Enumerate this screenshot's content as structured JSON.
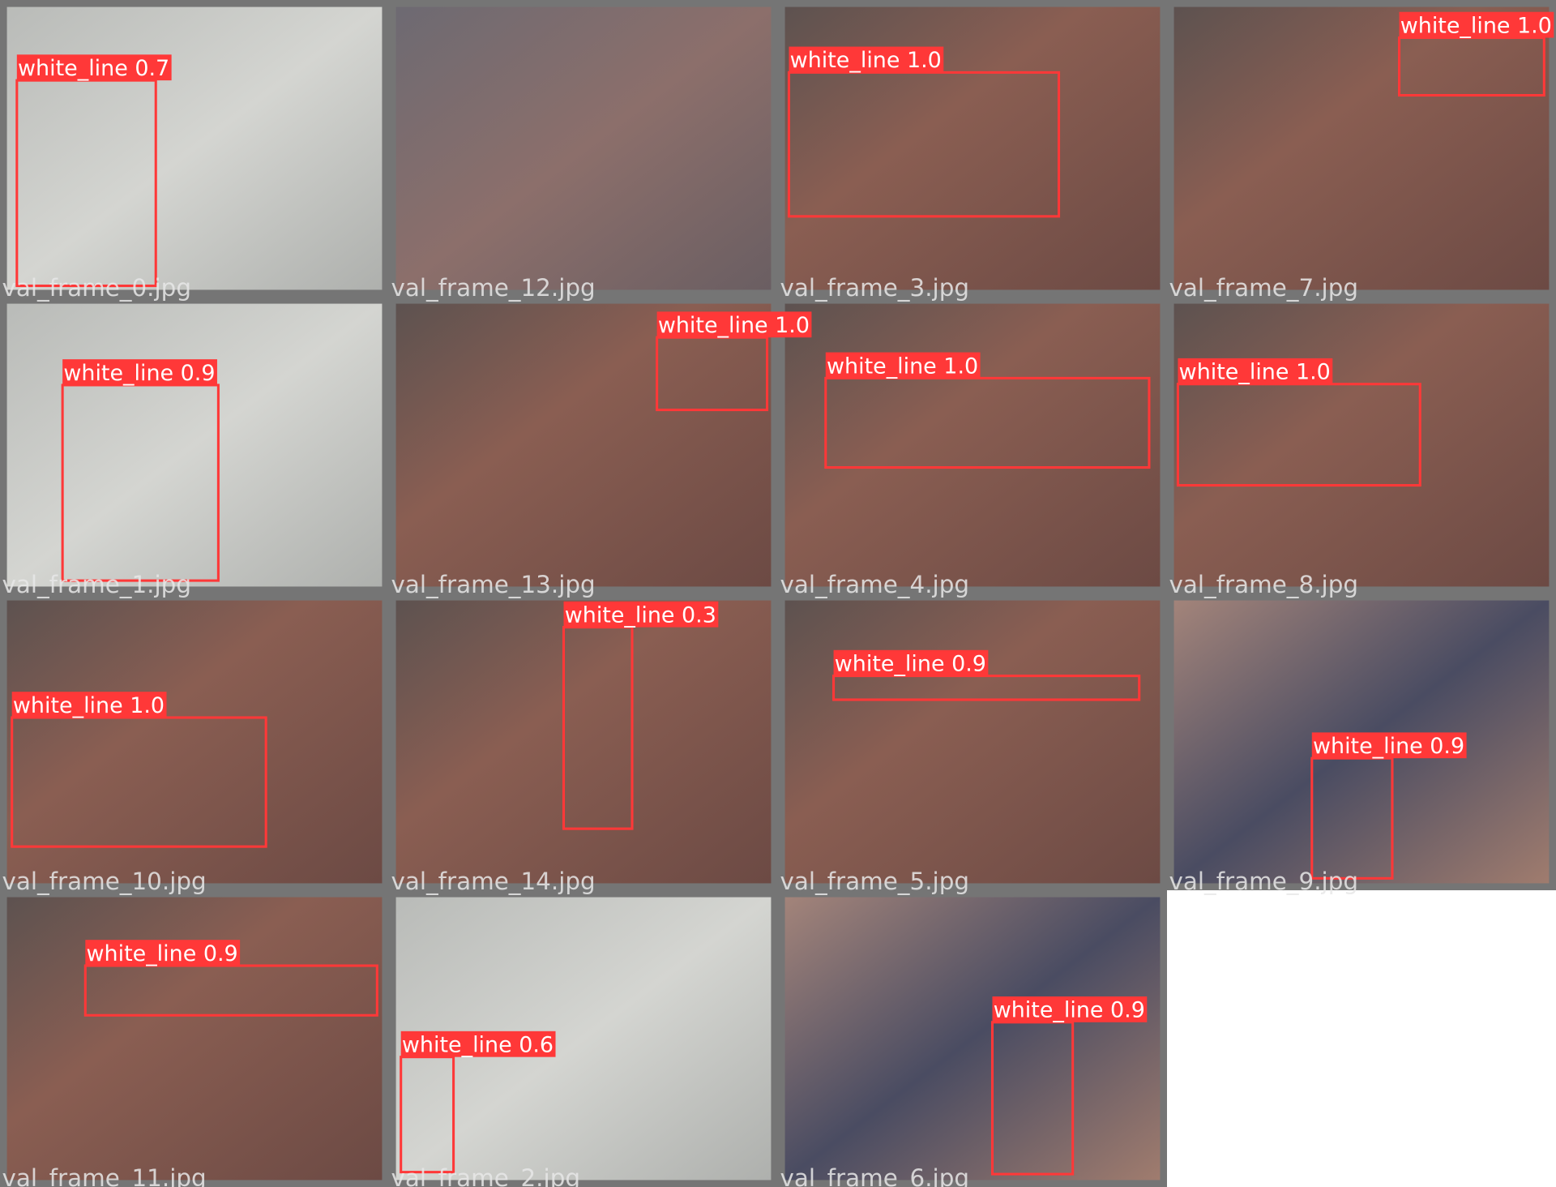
{
  "tiles": [
    {
      "filename": "val_frame_0.jpg",
      "detections": [
        {
          "label": "white_line 0.7"
        }
      ]
    },
    {
      "filename": "val_frame_12.jpg",
      "detections": []
    },
    {
      "filename": "val_frame_3.jpg",
      "detections": [
        {
          "label": "white_line 1.0"
        }
      ]
    },
    {
      "filename": "val_frame_7.jpg",
      "detections": [
        {
          "label": "white_line 1.0"
        }
      ]
    },
    {
      "filename": "val_frame_1.jpg",
      "detections": [
        {
          "label": "white_line 0.9"
        }
      ]
    },
    {
      "filename": "val_frame_13.jpg",
      "detections": [
        {
          "label": "white_line 1.0"
        }
      ]
    },
    {
      "filename": "val_frame_4.jpg",
      "detections": [
        {
          "label": "white_line 1.0"
        }
      ]
    },
    {
      "filename": "val_frame_8.jpg",
      "detections": [
        {
          "label": "white_line 1.0"
        }
      ]
    },
    {
      "filename": "val_frame_10.jpg",
      "detections": [
        {
          "label": "white_line 1.0"
        }
      ]
    },
    {
      "filename": "val_frame_14.jpg",
      "detections": [
        {
          "label": "white_line 0.3"
        }
      ]
    },
    {
      "filename": "val_frame_5.jpg",
      "detections": [
        {
          "label": "white_line 0.9"
        }
      ]
    },
    {
      "filename": "val_frame_9.jpg",
      "detections": [
        {
          "label": "white_line 0.9"
        }
      ]
    },
    {
      "filename": "val_frame_11.jpg",
      "detections": [
        {
          "label": "white_line 0.9"
        }
      ]
    },
    {
      "filename": "val_frame_2.jpg",
      "detections": [
        {
          "label": "white_line 0.6"
        }
      ]
    },
    {
      "filename": "val_frame_6.jpg",
      "detections": [
        {
          "label": "white_line 0.9"
        }
      ]
    }
  ]
}
